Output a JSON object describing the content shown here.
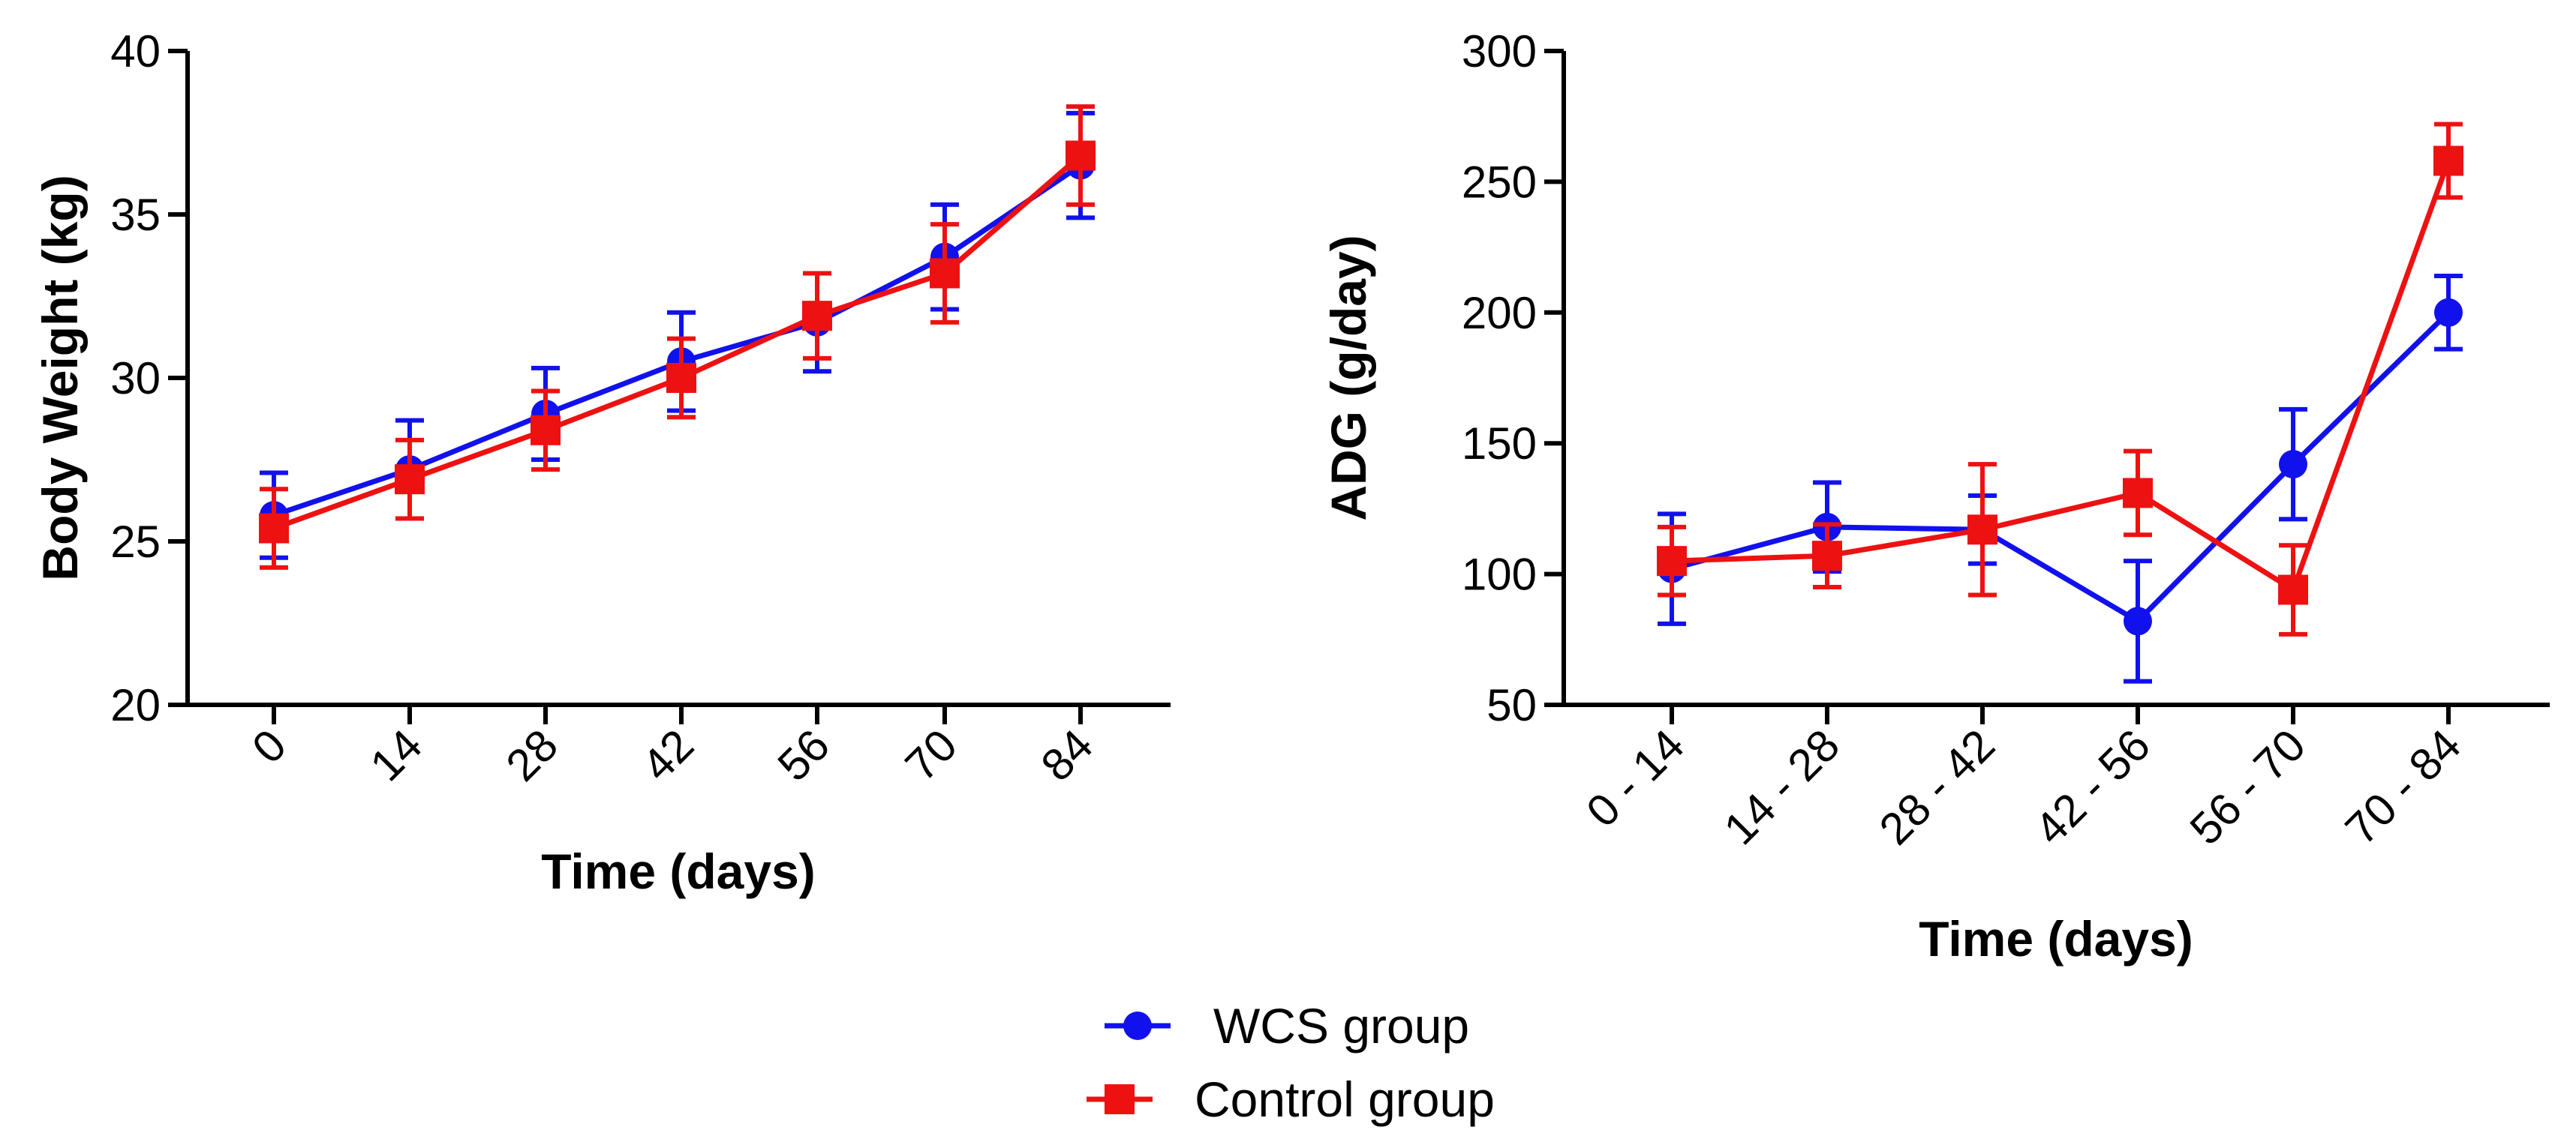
{
  "legend": {
    "items": [
      {
        "label": "WCS group",
        "color": "#1111ee",
        "marker": "circle"
      },
      {
        "label": "Control group",
        "color": "#ee1111",
        "marker": "square"
      }
    ]
  },
  "chart_data": [
    {
      "type": "line",
      "title": "",
      "xlabel": "Time (days)",
      "ylabel": "Body Weight (kg)",
      "categories": [
        "0",
        "14",
        "28",
        "42",
        "56",
        "70",
        "84"
      ],
      "ylim": [
        20,
        40
      ],
      "yticks": [
        "20",
        "25",
        "30",
        "35",
        "40"
      ],
      "series": [
        {
          "name": "WCS group",
          "color": "#1111ee",
          "marker": "circle",
          "values": [
            25.8,
            27.2,
            28.9,
            30.5,
            31.7,
            33.7,
            36.5
          ],
          "errors": [
            1.3,
            1.5,
            1.4,
            1.5,
            1.5,
            1.6,
            1.6
          ]
        },
        {
          "name": "Control group",
          "color": "#ee1111",
          "marker": "square",
          "values": [
            25.4,
            26.9,
            28.4,
            30.0,
            31.9,
            33.2,
            36.8
          ],
          "errors": [
            1.2,
            1.2,
            1.2,
            1.2,
            1.3,
            1.5,
            1.5
          ]
        }
      ]
    },
    {
      "type": "line",
      "title": "",
      "xlabel": "Time (days)",
      "ylabel": "ADG (g/day)",
      "categories": [
        "0 - 14",
        "14 - 28",
        "28 - 42",
        "42 - 56",
        "56 - 70",
        "70 - 84"
      ],
      "ylim": [
        50,
        300
      ],
      "yticks": [
        "50",
        "100",
        "150",
        "200",
        "250",
        "300"
      ],
      "series": [
        {
          "name": "WCS group",
          "color": "#1111ee",
          "marker": "circle",
          "values": [
            102,
            118,
            117,
            82,
            142,
            200
          ],
          "errors": [
            21,
            17,
            13,
            23,
            21,
            14
          ]
        },
        {
          "name": "Control group",
          "color": "#ee1111",
          "marker": "square",
          "values": [
            105,
            107,
            117,
            131,
            94,
            258
          ],
          "errors": [
            13,
            12,
            25,
            16,
            17,
            14
          ]
        }
      ]
    }
  ]
}
